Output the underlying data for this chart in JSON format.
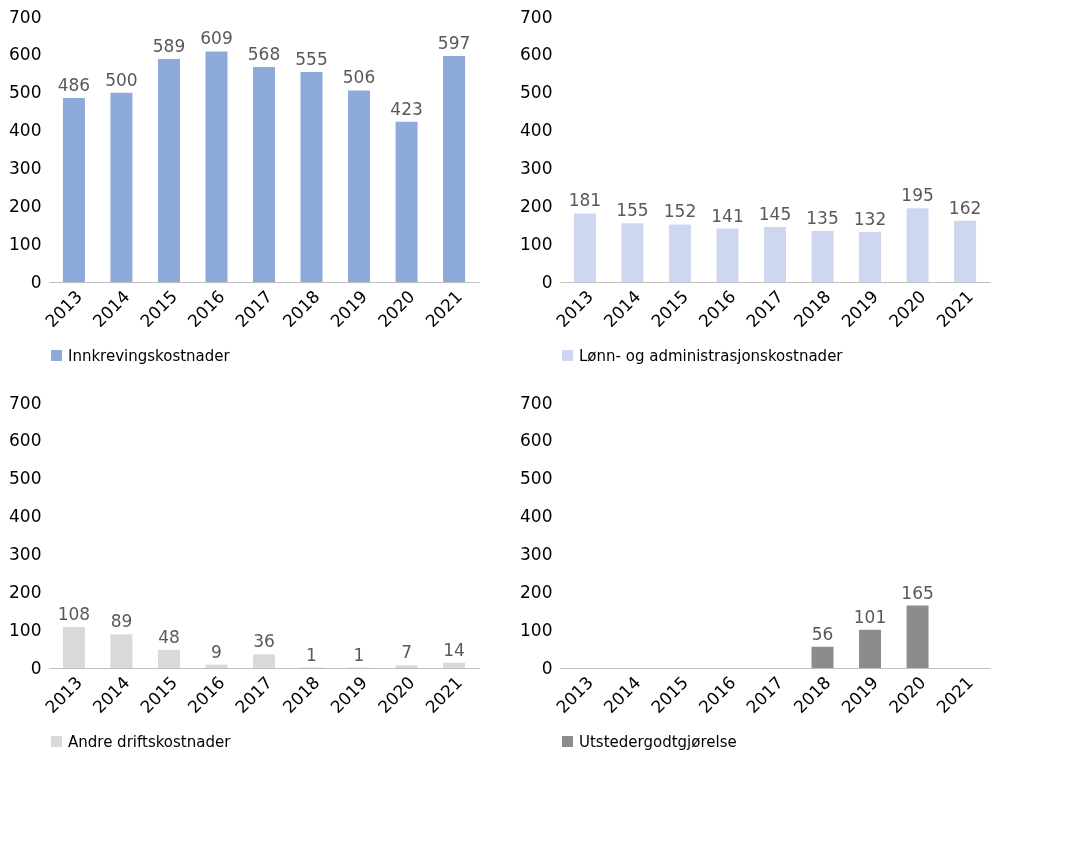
{
  "chart_data": [
    {
      "type": "bar",
      "categories": [
        "2013",
        "2014",
        "2015",
        "2016",
        "2017",
        "2018",
        "2019",
        "2020",
        "2021"
      ],
      "series": [
        {
          "name": "Innkrevingskostnader",
          "color": "#8eaadb",
          "values": [
            486,
            500,
            589,
            609,
            568,
            555,
            506,
            423,
            597
          ]
        }
      ],
      "ylim": [
        0,
        700
      ],
      "yticks": [
        0,
        100,
        200,
        300,
        400,
        500,
        600,
        700
      ],
      "data_labels": true,
      "legend": "bottom",
      "grid": false
    },
    {
      "type": "bar",
      "categories": [
        "2013",
        "2014",
        "2015",
        "2016",
        "2017",
        "2018",
        "2019",
        "2020",
        "2021"
      ],
      "series": [
        {
          "name": "Lønn- og administrasjonskostnader",
          "color": "#cdd8f0",
          "values": [
            181,
            155,
            152,
            141,
            145,
            135,
            132,
            195,
            162
          ]
        }
      ],
      "ylim": [
        0,
        700
      ],
      "yticks": [
        0,
        100,
        200,
        300,
        400,
        500,
        600,
        700
      ],
      "data_labels": true,
      "legend": "bottom",
      "grid": false
    },
    {
      "type": "bar",
      "categories": [
        "2013",
        "2014",
        "2015",
        "2016",
        "2017",
        "2018",
        "2019",
        "2020",
        "2021"
      ],
      "series": [
        {
          "name": "Andre driftskostnader",
          "color": "#d9d9d9",
          "values": [
            108,
            89,
            48,
            9,
            36,
            1,
            1,
            7,
            14
          ]
        }
      ],
      "ylim": [
        0,
        700
      ],
      "yticks": [
        0,
        100,
        200,
        300,
        400,
        500,
        600,
        700
      ],
      "data_labels": true,
      "legend": "bottom",
      "grid": false
    },
    {
      "type": "bar",
      "categories": [
        "2013",
        "2014",
        "2015",
        "2016",
        "2017",
        "2018",
        "2019",
        "2020",
        "2021"
      ],
      "series": [
        {
          "name": "Utstedergodtgjørelse",
          "color": "#8c8c8e",
          "values": [
            null,
            null,
            null,
            null,
            null,
            56,
            101,
            165,
            null
          ]
        }
      ],
      "ylim": [
        0,
        700
      ],
      "yticks": [
        0,
        100,
        200,
        300,
        400,
        500,
        600,
        700
      ],
      "data_labels": true,
      "legend": "bottom",
      "grid": false
    }
  ]
}
